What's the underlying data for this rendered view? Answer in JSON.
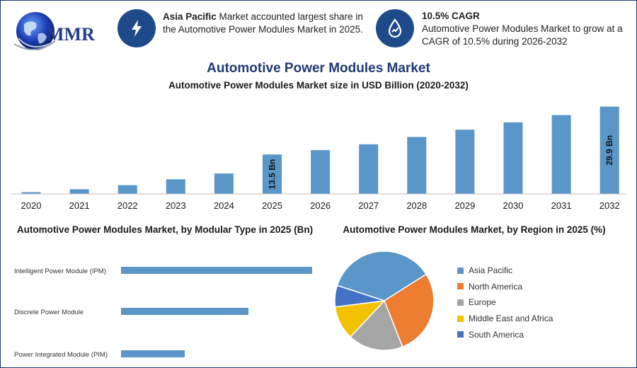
{
  "brand": {
    "logo_text": "MMR"
  },
  "info_cards": [
    {
      "icon": "lightning-icon",
      "bold": "Asia Pacific",
      "text": " Market accounted largest share in the Automotive Power Modules Market in 2025."
    },
    {
      "icon": "growth-drop-icon",
      "bold": "10.5% CAGR",
      "text": "Automotive Power Modules Market to grow at a CAGR of 10.5% during 2026-2032"
    }
  ],
  "colors": {
    "bar": "#5b96c8",
    "navy": "#1f4a8a",
    "title": "#1f3b73"
  },
  "chart_data": [
    {
      "type": "bar",
      "title": "Automotive Power Modules Market",
      "subtitle": "Automotive Power Modules Market size in USD Billion (2020-2032)",
      "categories": [
        "2020",
        "2021",
        "2022",
        "2023",
        "2024",
        "2025",
        "2026",
        "2027",
        "2028",
        "2029",
        "2030",
        "2031",
        "2032"
      ],
      "values": [
        0.6,
        1.6,
        3.0,
        5.0,
        7.0,
        13.5,
        15.0,
        17.0,
        19.5,
        22.0,
        24.5,
        27.0,
        29.9
      ],
      "data_labels": {
        "5": "13.5 Bn",
        "12": "29.9 Bn"
      },
      "ylim": [
        0,
        32
      ],
      "grid": false
    },
    {
      "type": "bar",
      "orientation": "horizontal",
      "title": "Automotive Power Modules Market, by Modular Type in 2025 (Bn)",
      "categories": [
        "Intelligent Power Module (IPM)",
        "Discrete Power Module",
        "Power Integrated Module (PIM)"
      ],
      "values": [
        6.0,
        4.0,
        2.0
      ],
      "xlim": [
        0,
        6.5
      ],
      "grid": false
    },
    {
      "type": "pie",
      "title": "Automotive Power Modules Market, by Region in 2025 (%)",
      "labels": [
        "Asia Pacific",
        "North America",
        "Europe",
        "Middle East and Africa",
        "South America"
      ],
      "values": [
        36,
        28,
        18,
        11,
        7
      ],
      "colors": [
        "#5b96c8",
        "#ed7d31",
        "#a5a5a5",
        "#f2c200",
        "#4472c4"
      ],
      "legend": "right"
    }
  ]
}
